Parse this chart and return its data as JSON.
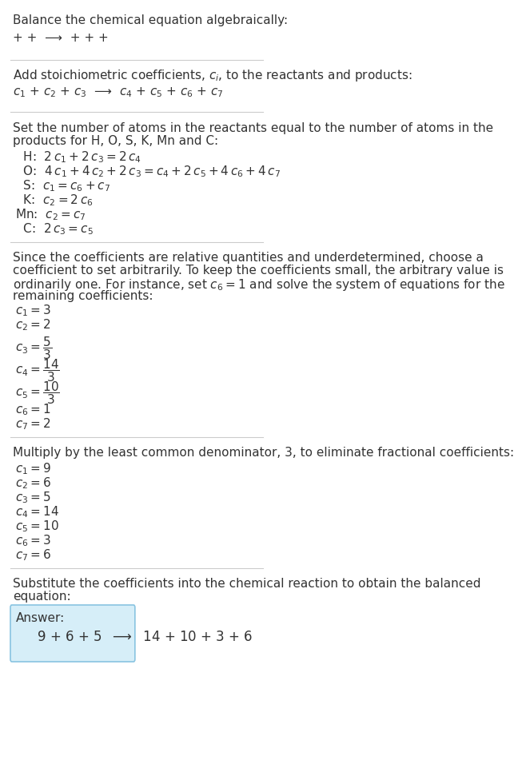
{
  "title": "Balance the chemical equation algebraically:",
  "section1_line1": "+ +  ⟶  + + +",
  "section2_header": "Add stoichiometric coefficients, $c_i$, to the reactants and products:",
  "section2_line1": "$c_1$ + $c_2$ + $c_3$  ⟶  $c_4$ + $c_5$ + $c_6$ + $c_7$",
  "section3_header": "Set the number of atoms in the reactants equal to the number of atoms in the\nproducts for H, O, S, K, Mn and C:",
  "section3_equations": [
    "  H:  $2\\,c_1 + 2\\,c_3 = 2\\,c_4$",
    "  O:  $4\\,c_1 + 4\\,c_2 + 2\\,c_3 = c_4 + 2\\,c_5 + 4\\,c_6 + 4\\,c_7$",
    "  S:  $c_1 = c_6 + c_7$",
    "  K:  $c_2 = 2\\,c_6$",
    "Mn:  $c_2 = c_7$",
    "  C:  $2\\,c_3 = c_5$"
  ],
  "section4_header": "Since the coefficients are relative quantities and underdetermined, choose a\ncoefficient to set arbitrarily. To keep the coefficients small, the arbitrary value is\nordinarily one. For instance, set $c_6 = 1$ and solve the system of equations for the\nremaining coefficients:",
  "section4_equations": [
    "$c_1 = 3$",
    "$c_2 = 2$",
    "$c_3 = \\dfrac{5}{3}$",
    "$c_4 = \\dfrac{14}{3}$",
    "$c_5 = \\dfrac{10}{3}$",
    "$c_6 = 1$",
    "$c_7 = 2$"
  ],
  "section5_header": "Multiply by the least common denominator, 3, to eliminate fractional coefficients:",
  "section5_equations": [
    "$c_1 = 9$",
    "$c_2 = 6$",
    "$c_3 = 5$",
    "$c_4 = 14$",
    "$c_5 = 10$",
    "$c_6 = 3$",
    "$c_7 = 6$"
  ],
  "section6_header": "Substitute the coefficients into the chemical reaction to obtain the balanced\nequation:",
  "answer_label": "Answer:",
  "answer_line": "     $9$ + $6$ + $5$  ⟶  $14$ + $10$ + $3$ + $6$",
  "bg_color": "#ffffff",
  "text_color": "#333333",
  "answer_box_color": "#d6eef8",
  "answer_box_border": "#89c4e1",
  "line_color": "#cccccc"
}
